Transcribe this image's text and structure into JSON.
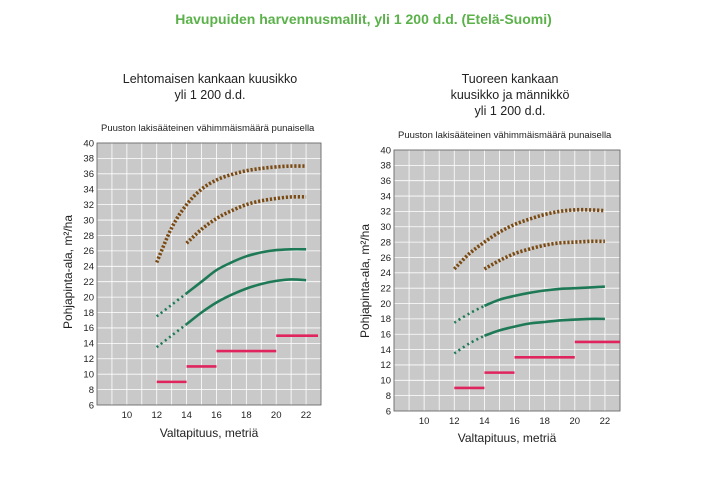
{
  "title": "Havupuiden harvennusmallit, yli 1 200 d.d. (Etelä-Suomi)",
  "colors": {
    "title": "#5bb14a",
    "upper": "#7a4a12",
    "lower": "#1e7a56",
    "minimum": "#e0245e",
    "plot_bg": "#c9c9c9"
  },
  "chart_data": [
    {
      "type": "line",
      "title_lines": [
        "Lehtomaisen kankaan kuusikko",
        "yli 1 200 d.d."
      ],
      "note": "Puuston lakisääteinen vähimmäismäärä punaisella",
      "xlabel": "Valtapituus, metriä",
      "ylabel": "Pohjapinta-ala, m²/ha",
      "xlim": [
        8,
        23
      ],
      "ylim": [
        6,
        40
      ],
      "xticks": [
        10,
        12,
        14,
        16,
        18,
        20,
        22
      ],
      "yticks": [
        6,
        8,
        10,
        12,
        14,
        16,
        18,
        20,
        22,
        24,
        26,
        28,
        30,
        32,
        34,
        36,
        38,
        40
      ],
      "grid": true,
      "series": [
        {
          "role": "upper-limit",
          "style": "dotted",
          "x": [
            12,
            13,
            14,
            15,
            16,
            17,
            18,
            19,
            20,
            21,
            22
          ],
          "y": [
            24.5,
            29,
            32,
            34,
            35.2,
            35.9,
            36.4,
            36.7,
            36.9,
            37,
            37
          ]
        },
        {
          "role": "upper-limit",
          "style": "dotted",
          "x": [
            14,
            15,
            16,
            17,
            18,
            19,
            20,
            21,
            22
          ],
          "y": [
            27,
            28.8,
            30.2,
            31.2,
            32,
            32.5,
            32.8,
            33,
            33
          ]
        },
        {
          "role": "after-thinning",
          "style": "dotted",
          "x": [
            12,
            13,
            14
          ],
          "y": [
            17.5,
            19,
            20.5
          ]
        },
        {
          "role": "after-thinning",
          "style": "solid",
          "x": [
            14,
            15,
            16,
            17,
            18,
            19,
            20,
            21,
            22
          ],
          "y": [
            20.5,
            22,
            23.5,
            24.5,
            25.3,
            25.8,
            26.1,
            26.2,
            26.2
          ]
        },
        {
          "role": "after-thinning",
          "style": "dotted",
          "x": [
            12,
            13,
            14
          ],
          "y": [
            13.5,
            15,
            16.5
          ]
        },
        {
          "role": "after-thinning",
          "style": "solid",
          "x": [
            14,
            15,
            16,
            17,
            18,
            19,
            20,
            21,
            22
          ],
          "y": [
            16.5,
            18,
            19.3,
            20.3,
            21.1,
            21.7,
            22.1,
            22.3,
            22.2
          ]
        }
      ],
      "minimum": [
        {
          "x": [
            12,
            14
          ],
          "y": 9
        },
        {
          "x": [
            14,
            16
          ],
          "y": 11
        },
        {
          "x": [
            16,
            20
          ],
          "y": 13
        },
        {
          "x": [
            20,
            22.8
          ],
          "y": 15
        }
      ]
    },
    {
      "type": "line",
      "title_lines": [
        "Tuoreen kankaan",
        "kuusikko ja männikkö",
        "yli 1 200 d.d."
      ],
      "note": "Puuston lakisääteinen vähimmäismäärä punaisella",
      "xlabel": "Valtapituus, metriä",
      "ylabel": "Pohjapinta-ala, m²/ha",
      "xlim": [
        8,
        23
      ],
      "ylim": [
        6,
        40
      ],
      "xticks": [
        10,
        12,
        14,
        16,
        18,
        20,
        22
      ],
      "yticks": [
        6,
        8,
        10,
        12,
        14,
        16,
        18,
        20,
        22,
        24,
        26,
        28,
        30,
        32,
        34,
        36,
        38,
        40
      ],
      "grid": true,
      "series": [
        {
          "role": "upper-limit",
          "style": "dotted",
          "x": [
            12,
            13,
            14,
            15,
            16,
            17,
            18,
            19,
            20,
            21,
            22
          ],
          "y": [
            24.5,
            26.5,
            28,
            29.3,
            30.3,
            31,
            31.6,
            32,
            32.2,
            32.2,
            32.1
          ]
        },
        {
          "role": "upper-limit",
          "style": "dotted",
          "x": [
            14,
            15,
            16,
            17,
            18,
            19,
            20,
            21,
            22
          ],
          "y": [
            24.5,
            25.6,
            26.5,
            27.1,
            27.6,
            27.9,
            28,
            28.1,
            28.1
          ]
        },
        {
          "role": "after-thinning",
          "style": "dotted",
          "x": [
            12,
            13,
            14
          ],
          "y": [
            17.5,
            18.7,
            19.7
          ]
        },
        {
          "role": "after-thinning",
          "style": "solid",
          "x": [
            14,
            15,
            16,
            17,
            18,
            19,
            20,
            21,
            22
          ],
          "y": [
            19.7,
            20.5,
            21,
            21.4,
            21.7,
            21.9,
            22,
            22.1,
            22.2
          ]
        },
        {
          "role": "after-thinning",
          "style": "dotted",
          "x": [
            12,
            13,
            14
          ],
          "y": [
            13.5,
            14.8,
            15.8
          ]
        },
        {
          "role": "after-thinning",
          "style": "solid",
          "x": [
            14,
            15,
            16,
            17,
            18,
            19,
            20,
            21,
            22
          ],
          "y": [
            15.8,
            16.5,
            17,
            17.4,
            17.6,
            17.8,
            17.9,
            18,
            18
          ]
        }
      ],
      "minimum": [
        {
          "x": [
            12,
            14
          ],
          "y": 9
        },
        {
          "x": [
            14,
            16
          ],
          "y": 11
        },
        {
          "x": [
            16,
            20
          ],
          "y": 13
        },
        {
          "x": [
            20,
            23
          ],
          "y": 15
        }
      ]
    }
  ]
}
